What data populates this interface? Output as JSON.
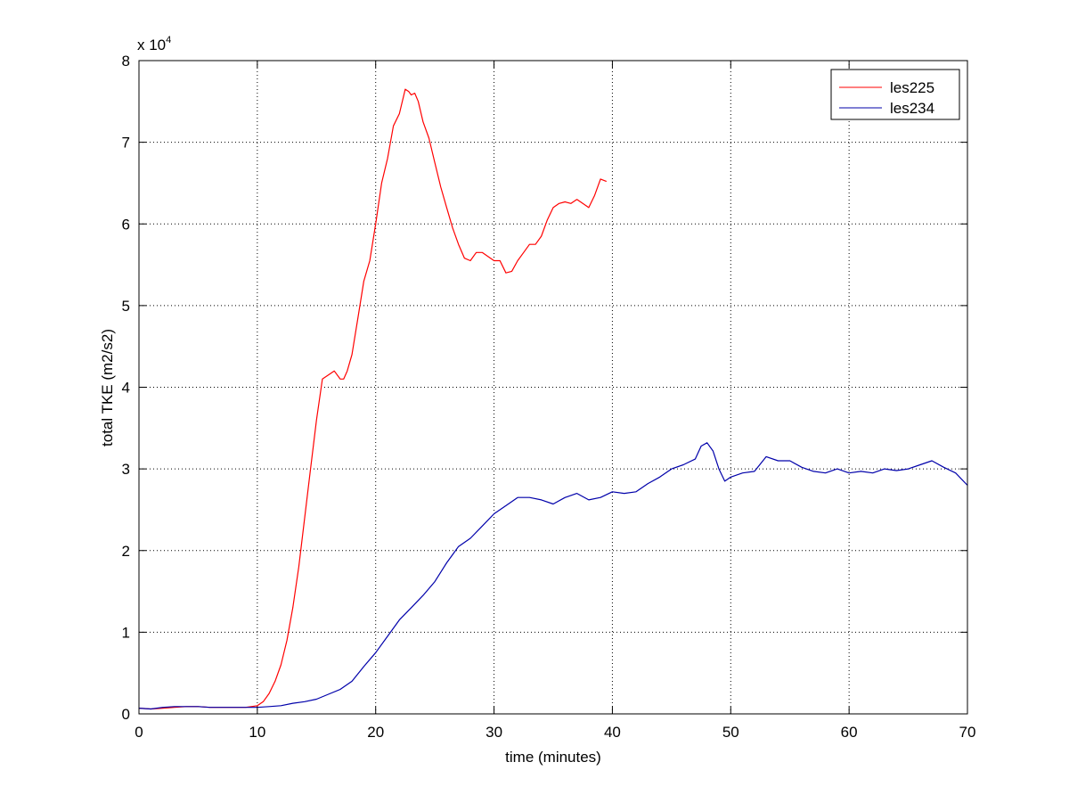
{
  "chart_data": {
    "type": "line",
    "title": "",
    "xlabel": "time (minutes)",
    "ylabel": "total TKE (m2/s2)",
    "xlim": [
      0,
      70
    ],
    "ylim": [
      0,
      8
    ],
    "y_multiplier_label": "x 10",
    "y_multiplier_exponent": "4",
    "xticks": [
      "0",
      "10",
      "20",
      "30",
      "40",
      "50",
      "60",
      "70"
    ],
    "yticks": [
      "0",
      "1",
      "2",
      "3",
      "4",
      "5",
      "6",
      "7",
      "8"
    ],
    "grid": true,
    "legend_position": "top-right",
    "series": [
      {
        "name": "les225",
        "color": "#ff0000",
        "x": [
          0,
          1,
          2,
          3,
          4,
          5,
          6,
          7,
          8,
          9,
          9.5,
          10,
          10.5,
          11,
          11.5,
          12,
          12.5,
          13,
          13.5,
          14,
          14.5,
          15,
          15.5,
          16,
          16.5,
          17,
          17.3,
          17.6,
          18,
          18.5,
          19,
          19.5,
          20,
          20.5,
          21,
          21.5,
          22,
          22.5,
          22.8,
          23,
          23.3,
          23.6,
          24,
          24.5,
          25,
          25.5,
          26,
          26.5,
          27,
          27.5,
          28,
          28.5,
          29,
          29.5,
          30,
          30.5,
          31,
          31.5,
          32,
          32.5,
          33,
          33.5,
          34,
          34.5,
          35,
          35.5,
          36,
          36.5,
          37,
          37.5,
          38,
          38.5,
          39,
          39.5
        ],
        "y": [
          0.07,
          0.06,
          0.07,
          0.08,
          0.09,
          0.09,
          0.08,
          0.08,
          0.08,
          0.08,
          0.09,
          0.1,
          0.15,
          0.25,
          0.4,
          0.6,
          0.9,
          1.3,
          1.8,
          2.4,
          3.0,
          3.6,
          4.1,
          4.15,
          4.2,
          4.1,
          4.1,
          4.2,
          4.4,
          4.85,
          5.3,
          5.55,
          6.0,
          6.5,
          6.8,
          7.2,
          7.35,
          7.65,
          7.62,
          7.58,
          7.6,
          7.5,
          7.25,
          7.05,
          6.75,
          6.45,
          6.2,
          5.95,
          5.75,
          5.58,
          5.55,
          5.65,
          5.65,
          5.6,
          5.55,
          5.55,
          5.4,
          5.42,
          5.55,
          5.65,
          5.75,
          5.75,
          5.85,
          6.05,
          6.2,
          6.25,
          6.27,
          6.25,
          6.3,
          6.25,
          6.2,
          6.35,
          6.55,
          6.52
        ]
      },
      {
        "name": "les234",
        "color": "#0000aa",
        "x": [
          0,
          1,
          2,
          3,
          4,
          5,
          6,
          7,
          8,
          9,
          10,
          11,
          12,
          13,
          14,
          15,
          16,
          17,
          18,
          19,
          20,
          21,
          22,
          23,
          24,
          25,
          26,
          27,
          28,
          29,
          30,
          31,
          32,
          33,
          34,
          35,
          36,
          37,
          38,
          39,
          40,
          41,
          42,
          43,
          44,
          45,
          46,
          47,
          47.5,
          48,
          48.5,
          49,
          49.5,
          50,
          51,
          52,
          53,
          54,
          55,
          56,
          57,
          58,
          59,
          60,
          61,
          62,
          63,
          64,
          65,
          66,
          67,
          68,
          69,
          70
        ],
        "y": [
          0.07,
          0.06,
          0.08,
          0.09,
          0.09,
          0.09,
          0.08,
          0.08,
          0.08,
          0.08,
          0.08,
          0.09,
          0.1,
          0.13,
          0.15,
          0.18,
          0.24,
          0.3,
          0.4,
          0.58,
          0.75,
          0.95,
          1.15,
          1.3,
          1.45,
          1.62,
          1.85,
          2.05,
          2.15,
          2.3,
          2.45,
          2.55,
          2.65,
          2.65,
          2.62,
          2.57,
          2.65,
          2.7,
          2.62,
          2.65,
          2.72,
          2.7,
          2.72,
          2.82,
          2.9,
          3.0,
          3.05,
          3.12,
          3.28,
          3.32,
          3.22,
          3.0,
          2.85,
          2.9,
          2.95,
          2.97,
          3.15,
          3.1,
          3.1,
          3.02,
          2.97,
          2.95,
          3.0,
          2.95,
          2.97,
          2.95,
          3.0,
          2.98,
          3.0,
          3.05,
          3.1,
          3.02,
          2.95,
          2.8
        ]
      }
    ]
  }
}
